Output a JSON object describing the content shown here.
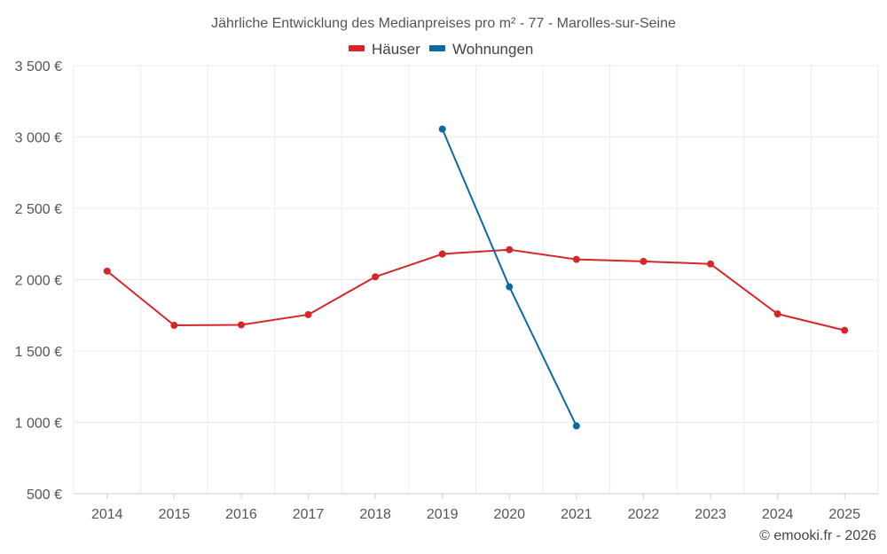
{
  "chart_data": {
    "type": "line",
    "title": "Jährliche Entwicklung des Medianpreises pro m² - 77 - Marolles-sur-Seine",
    "x": [
      "2014",
      "2015",
      "2016",
      "2017",
      "2018",
      "2019",
      "2020",
      "2021",
      "2022",
      "2023",
      "2024",
      "2025"
    ],
    "series": [
      {
        "name": "Häuser",
        "color": "#d62728",
        "values": [
          2060,
          1680,
          1683,
          1755,
          2020,
          2180,
          2210,
          2142,
          2128,
          2110,
          1760,
          1645
        ]
      },
      {
        "name": "Wohnungen",
        "color": "#0b69a3",
        "values": [
          null,
          null,
          null,
          null,
          null,
          3055,
          1950,
          975,
          null,
          null,
          null,
          null
        ]
      }
    ],
    "ylim": [
      500,
      3500
    ],
    "yticks": [
      500,
      1000,
      1500,
      2000,
      2500,
      3000,
      3500
    ],
    "ytick_labels": [
      "500 €",
      "1 000 €",
      "1 500 €",
      "2 000 €",
      "2 500 €",
      "3 000 €",
      "3 500 €"
    ],
    "xlabel": "",
    "ylabel": "",
    "grid": true,
    "legend": "top-center"
  },
  "credit": "© emooki.fr - 2026"
}
